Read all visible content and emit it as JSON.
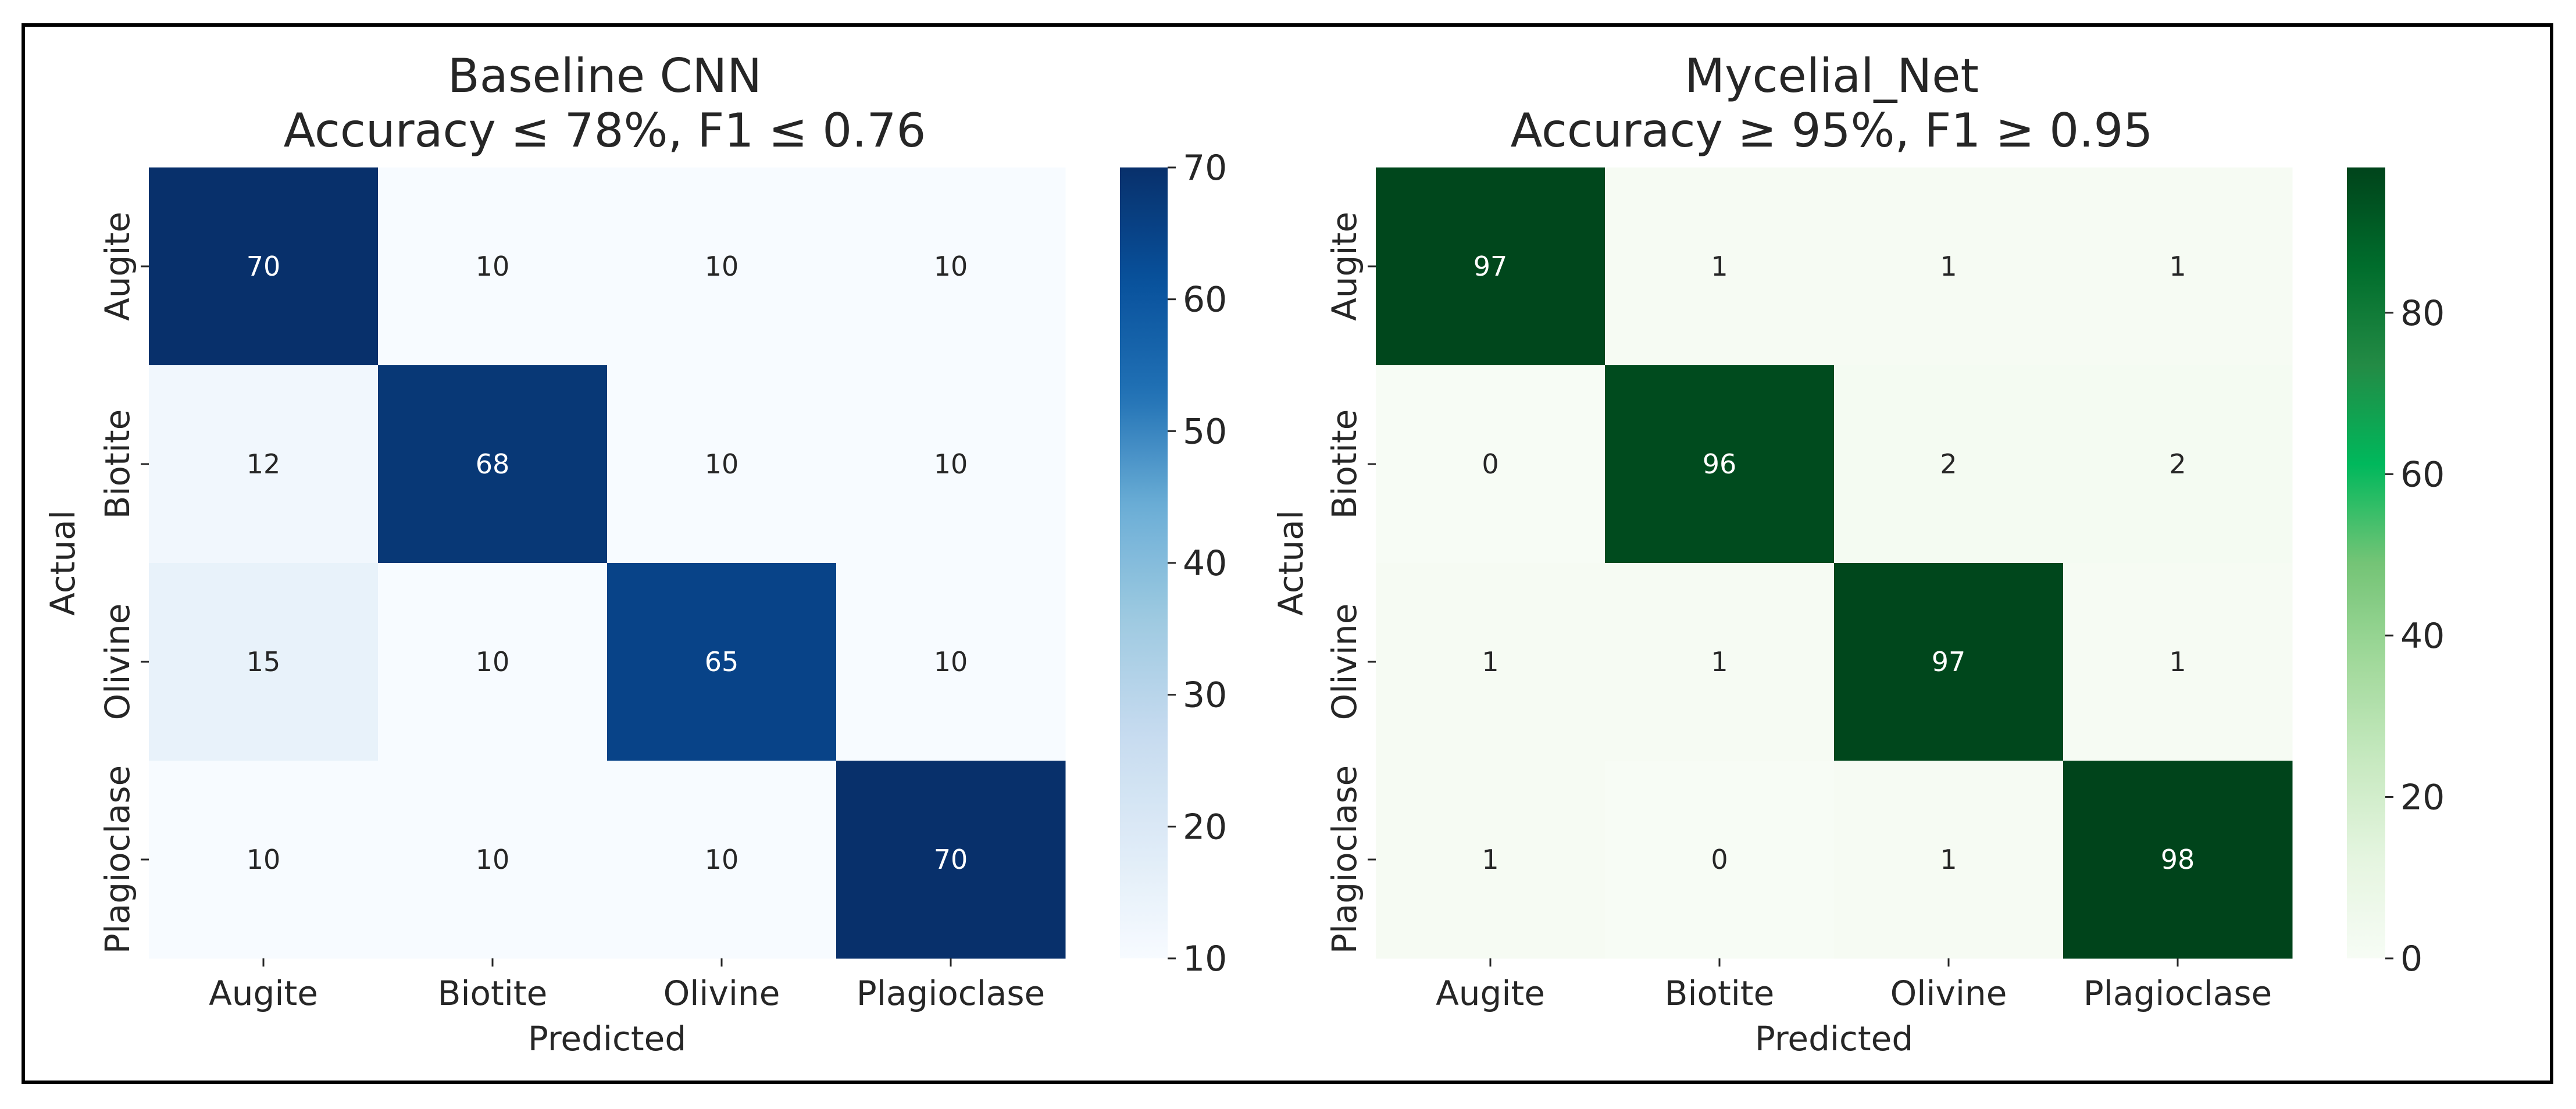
{
  "chart_data": [
    {
      "type": "heatmap",
      "title": [
        "Baseline CNN",
        "Accuracy ≤ 78%, F1 ≤ 0.76"
      ],
      "xlabel": "Predicted",
      "ylabel": "Actual",
      "x_categories": [
        "Augite",
        "Biotite",
        "Olivine",
        "Plagioclase"
      ],
      "y_categories": [
        "Augite",
        "Biotite",
        "Olivine",
        "Plagioclase"
      ],
      "values": [
        [
          70,
          10,
          10,
          10
        ],
        [
          12,
          68,
          10,
          10
        ],
        [
          15,
          10,
          65,
          10
        ],
        [
          10,
          10,
          10,
          70
        ]
      ],
      "colormap": "Blues",
      "colorbar": {
        "range": [
          10,
          70
        ],
        "ticks": [
          "10",
          "20",
          "30",
          "40",
          "50",
          "60",
          "70"
        ]
      },
      "colors": [
        "#f7fbff",
        "#deebf7",
        "#c6dbef",
        "#9ecae1",
        "#6baed6",
        "#2171b5",
        "#08519c",
        "#08306b"
      ]
    },
    {
      "type": "heatmap",
      "title": [
        "Mycelial_Net",
        "Accuracy ≥ 95%, F1 ≥ 0.95"
      ],
      "xlabel": "Predicted",
      "ylabel": "Actual",
      "x_categories": [
        "Augite",
        "Biotite",
        "Olivine",
        "Plagioclase"
      ],
      "y_categories": [
        "Augite",
        "Biotite",
        "Olivine",
        "Plagioclase"
      ],
      "values": [
        [
          97,
          1,
          1,
          1
        ],
        [
          0,
          96,
          2,
          2
        ],
        [
          1,
          1,
          97,
          1
        ],
        [
          1,
          0,
          1,
          98
        ]
      ],
      "colormap": "Greens",
      "colorbar": {
        "range": [
          0,
          98
        ],
        "ticks": [
          "0",
          "20",
          "40",
          "60",
          "80"
        ]
      },
      "colors": [
        "#f7fcf5",
        "#e5f5e0",
        "#c7e9c0",
        "#a1d99b",
        "#74c476",
        "#00b85c",
        "#238b45",
        "#006d2c",
        "#00441b"
      ]
    }
  ]
}
